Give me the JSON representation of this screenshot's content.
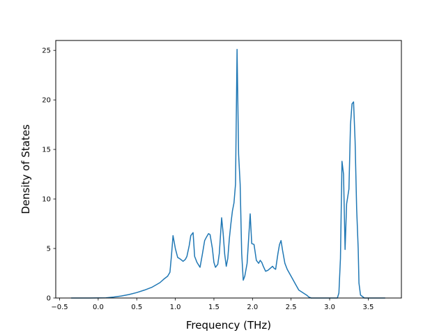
{
  "chart_data": {
    "type": "line",
    "title": "",
    "xlabel": "Frequency (THz)",
    "ylabel": "Density of States",
    "xlim": [
      -0.55,
      3.93
    ],
    "ylim": [
      0,
      26
    ],
    "grid": false,
    "legend": "none",
    "x_ticks": [
      "−0.5",
      "0.0",
      "0.5",
      "1.0",
      "1.5",
      "2.0",
      "2.5",
      "3.0",
      "3.5"
    ],
    "x_tick_values": [
      -0.5,
      0.0,
      0.5,
      1.0,
      1.5,
      2.0,
      2.5,
      3.0,
      3.5
    ],
    "y_ticks": [
      "0",
      "5",
      "10",
      "15",
      "20",
      "25"
    ],
    "y_tick_values": [
      0,
      5,
      10,
      15,
      20,
      25
    ],
    "series": [
      {
        "color": "#1f77b4",
        "x": [
          -0.35,
          -0.1,
          0.1,
          0.2,
          0.3,
          0.4,
          0.5,
          0.6,
          0.7,
          0.8,
          0.85,
          0.9,
          0.93,
          0.95,
          0.97,
          1.0,
          1.03,
          1.07,
          1.1,
          1.13,
          1.15,
          1.18,
          1.2,
          1.23,
          1.25,
          1.28,
          1.32,
          1.35,
          1.38,
          1.4,
          1.43,
          1.45,
          1.48,
          1.5,
          1.52,
          1.55,
          1.57,
          1.6,
          1.62,
          1.64,
          1.66,
          1.68,
          1.7,
          1.72,
          1.74,
          1.76,
          1.78,
          1.8,
          1.82,
          1.84,
          1.86,
          1.88,
          1.9,
          1.93,
          1.95,
          1.97,
          1.99,
          2.02,
          2.05,
          2.08,
          2.1,
          2.12,
          2.14,
          2.17,
          2.2,
          2.23,
          2.26,
          2.28,
          2.3,
          2.33,
          2.35,
          2.37,
          2.39,
          2.42,
          2.45,
          2.5,
          2.55,
          2.6,
          2.63,
          2.67,
          2.7,
          2.73,
          2.76,
          2.8,
          2.9,
          3.0,
          3.1,
          3.12,
          3.14,
          3.16,
          3.18,
          3.2,
          3.22,
          3.23,
          3.25,
          3.27,
          3.29,
          3.31,
          3.33,
          3.35,
          3.37,
          3.38,
          3.4,
          3.45,
          3.5,
          3.72
        ],
        "y": [
          0,
          0,
          0.02,
          0.1,
          0.2,
          0.35,
          0.55,
          0.8,
          1.1,
          1.55,
          1.9,
          2.2,
          2.6,
          4.3,
          6.3,
          5.0,
          4.1,
          3.9,
          3.7,
          3.9,
          4.2,
          5.3,
          6.3,
          6.6,
          4.2,
          3.6,
          3.1,
          4.4,
          5.8,
          6.1,
          6.5,
          6.4,
          5.0,
          3.6,
          3.1,
          3.4,
          4.5,
          8.1,
          6.5,
          4.4,
          3.2,
          4.0,
          6.0,
          7.5,
          8.8,
          9.6,
          11.5,
          25.1,
          14.5,
          11.5,
          4.5,
          1.8,
          2.2,
          3.5,
          6.0,
          8.5,
          5.5,
          5.4,
          3.8,
          3.5,
          3.8,
          3.6,
          3.2,
          2.7,
          2.8,
          3.0,
          3.2,
          3.0,
          2.9,
          4.5,
          5.4,
          5.8,
          4.8,
          3.5,
          2.9,
          2.2,
          1.5,
          0.8,
          0.65,
          0.45,
          0.3,
          0.1,
          0,
          0,
          0,
          0,
          0,
          0.5,
          4.0,
          13.8,
          12.5,
          4.9,
          9.5,
          10.0,
          11.0,
          17.5,
          19.6,
          19.8,
          15.8,
          9.0,
          5.0,
          1.5,
          0.3,
          0,
          0,
          0
        ]
      }
    ]
  }
}
